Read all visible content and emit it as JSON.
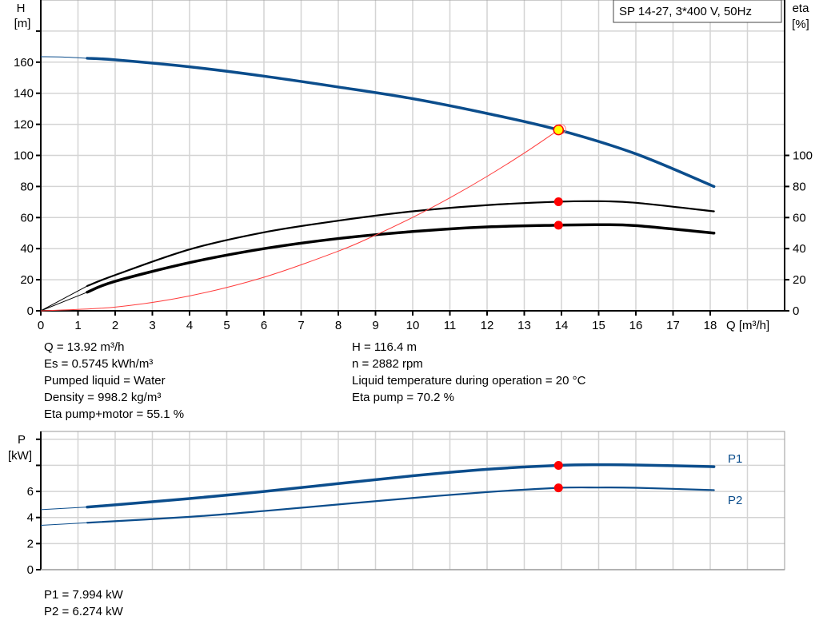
{
  "chart_data": [
    {
      "type": "line",
      "title": "SP 14-27, 3*400 V, 50Hz",
      "xlabel": "Q [m³/h]",
      "ylabel": "H",
      "yunit": "[m]",
      "y2label": "eta",
      "y2unit": "[%]",
      "xlim": [
        0,
        20
      ],
      "ylim": [
        0,
        200
      ],
      "y2lim": [
        0,
        200
      ],
      "xticks": [
        "0",
        "1",
        "2",
        "3",
        "4",
        "5",
        "6",
        "7",
        "8",
        "9",
        "10",
        "11",
        "12",
        "13",
        "14",
        "15",
        "16",
        "17",
        "18"
      ],
      "yticks": [
        "0",
        "20",
        "40",
        "60",
        "80",
        "100",
        "120",
        "140",
        "160"
      ],
      "y2ticks": [
        "0",
        "20",
        "40",
        "60",
        "80",
        "100"
      ],
      "grid": true,
      "series": [
        {
          "key": "H",
          "color": "#0b4d8c",
          "thin_until": 1.25,
          "x": [
            0,
            0.6,
            1.25,
            2,
            4,
            6,
            8,
            10,
            12,
            13.92,
            16,
            18.1
          ],
          "y": [
            163.5,
            163.3,
            162.5,
            161.5,
            157,
            151,
            144,
            136.5,
            127,
            116.4,
            101,
            80
          ]
        },
        {
          "key": "eta_pump",
          "color": "#000000",
          "thin_until": 1.25,
          "x": [
            0,
            1.25,
            2,
            4,
            6,
            8,
            10,
            12,
            13.92,
            15,
            16,
            18.1
          ],
          "y": [
            0,
            16,
            23,
            39.5,
            50.5,
            58,
            64,
            68,
            70.2,
            70.5,
            69.5,
            64
          ]
        },
        {
          "key": "eta_total",
          "color": "#000000",
          "thin_until": 1.25,
          "x": [
            0,
            1.25,
            2,
            4,
            6,
            8,
            10,
            12,
            13.92,
            15,
            16,
            18.1
          ],
          "y": [
            0,
            12,
            19,
            31,
            40,
            46.5,
            51,
            54,
            55.1,
            55.4,
            54.8,
            50
          ]
        },
        {
          "key": "system",
          "color": "#ff3b3b",
          "x": [
            0,
            2,
            4,
            6,
            8,
            9,
            10,
            11,
            12,
            13,
            13.92
          ],
          "y": [
            0,
            2.4,
            9.6,
            21.6,
            38.4,
            48.7,
            60.1,
            72.7,
            86.5,
            101.5,
            116.4
          ]
        }
      ],
      "operating_points": [
        {
          "x": 13.92,
          "y": 116.4,
          "style": "yellow"
        },
        {
          "x": 13.92,
          "y": 70.2,
          "style": "red"
        },
        {
          "x": 13.92,
          "y": 55.1,
          "style": "red"
        }
      ]
    },
    {
      "type": "line",
      "xlabel": "",
      "ylabel": "P",
      "yunit": "[kW]",
      "xlim": [
        0,
        20
      ],
      "ylim": [
        0,
        10.6
      ],
      "yticks": [
        "0",
        "2",
        "4",
        "6"
      ],
      "grid": true,
      "series": [
        {
          "name": "P1",
          "color": "#0b4d8c",
          "thin_until": 1.25,
          "x": [
            0,
            1.25,
            4,
            6,
            8,
            10,
            12,
            13.92,
            15,
            16,
            18.1
          ],
          "y": [
            4.6,
            4.8,
            5.45,
            6.0,
            6.6,
            7.2,
            7.7,
            7.994,
            8.05,
            8.03,
            7.9
          ]
        },
        {
          "name": "P2",
          "color": "#0b4d8c",
          "thin_until": 1.25,
          "x": [
            0,
            1.25,
            4,
            6,
            8,
            10,
            12,
            13.92,
            15,
            16,
            18.1
          ],
          "y": [
            3.4,
            3.6,
            4.05,
            4.5,
            5.0,
            5.5,
            5.95,
            6.274,
            6.3,
            6.28,
            6.1
          ]
        }
      ],
      "operating_points": [
        {
          "x": 13.92,
          "y": 7.994,
          "style": "red"
        },
        {
          "x": 13.92,
          "y": 6.274,
          "style": "red"
        }
      ]
    }
  ],
  "info_left": [
    "Q = 13.92 m³/h",
    "Es = 0.5745 kWh/m³",
    "Pumped liquid = Water",
    "Density = 998.2 kg/m³",
    "Eta pump+motor = 55.1 %"
  ],
  "info_right": [
    "H = 116.4 m",
    "n = 2882 rpm",
    "Liquid temperature during operation = 20 °C",
    "Eta pump = 70.2 %"
  ],
  "info_bottom": [
    "P1 = 7.994 kW",
    "P2 = 6.274 kW"
  ]
}
